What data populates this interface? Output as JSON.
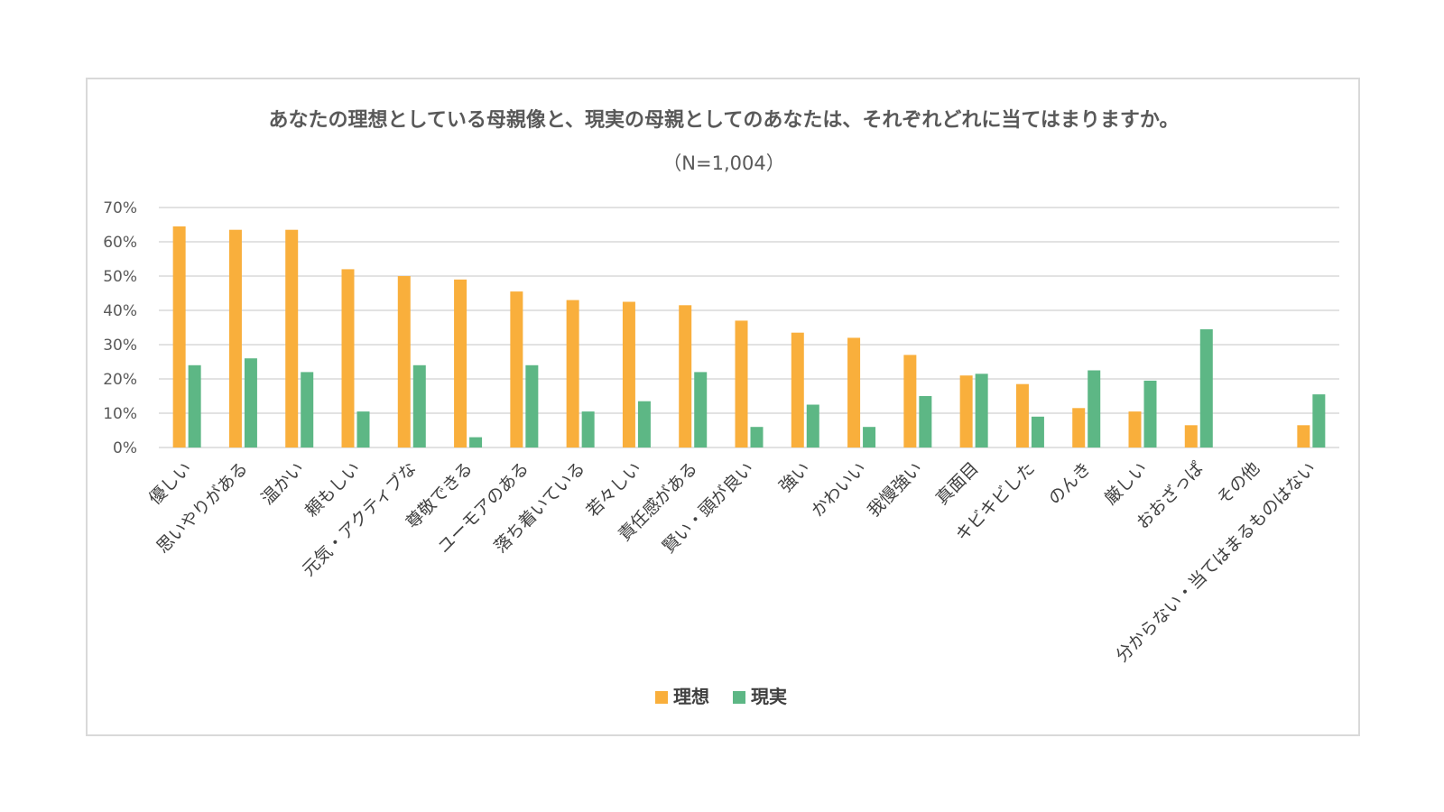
{
  "chart_data": {
    "type": "bar",
    "title": "あなたの理想としている母親像と、現実の母親としてのあなたは、それぞれどれに当てはまりますか。",
    "subtitle": "（N=1,004）",
    "xlabel": "",
    "ylabel": "",
    "ylim": [
      0,
      70
    ],
    "yticks": [
      "0%",
      "10%",
      "20%",
      "30%",
      "40%",
      "50%",
      "60%",
      "70%"
    ],
    "grid": true,
    "legend_position": "bottom",
    "categories": [
      "優しい",
      "思いやりがある",
      "温かい",
      "頼もしい",
      "元気・アクティブな",
      "尊敬できる",
      "ユーモアのある",
      "落ち着いている",
      "若々しい",
      "責任感がある",
      "賢い・頭が良い",
      "強い",
      "かわいい",
      "我慢強い",
      "真面目",
      "キビキビした",
      "のんき",
      "厳しい",
      "おおざっぱ",
      "その他",
      "分からない・当てはまるものはない"
    ],
    "series": [
      {
        "name": "理想",
        "color": "#F9AF3C",
        "values": [
          64.5,
          63.5,
          63.5,
          52,
          50,
          49,
          45.5,
          43,
          42.5,
          41.5,
          37,
          33.5,
          32,
          27,
          21,
          18.5,
          11.5,
          10.5,
          6.5,
          0,
          6.5
        ]
      },
      {
        "name": "現実",
        "color": "#5DB785",
        "values": [
          24,
          26,
          22,
          10.5,
          24,
          3,
          24,
          10.5,
          13.5,
          22,
          6,
          12.5,
          6,
          15,
          21.5,
          9,
          22.5,
          19.5,
          34.5,
          0,
          15.5
        ]
      }
    ]
  }
}
